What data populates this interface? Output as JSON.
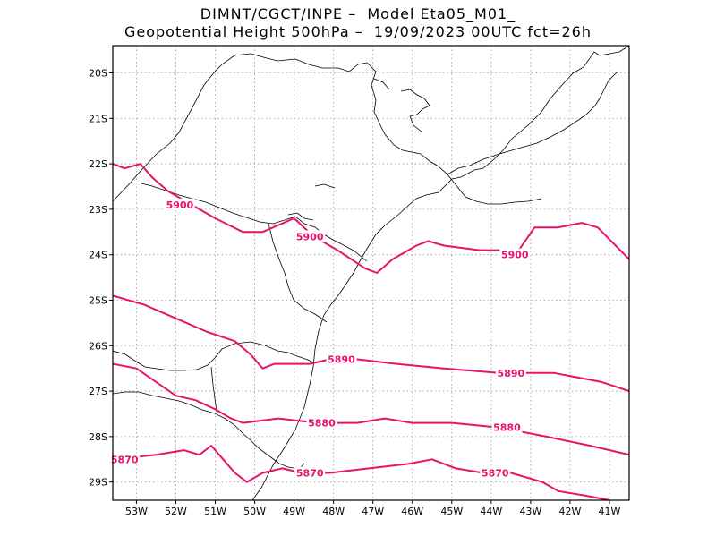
{
  "title_line1": "DIMNT/CGCT/INPE –  Model Eta05_M01_",
  "title_line2": "Geopotential Height 500hPa –  19/09/2023 00UTC fct=26h",
  "colors": {
    "contour": "#e8126c",
    "grid": "#999999",
    "border": "#000000"
  },
  "chart_data": {
    "type": "contour-map",
    "variable": "Geopotential Height 500hPa",
    "lon_range": [
      -53.6,
      -40.5
    ],
    "lat_range": [
      -29.4,
      -19.4
    ],
    "lon_ticks": [
      "53W",
      "52W",
      "51W",
      "50W",
      "49W",
      "48W",
      "47W",
      "46W",
      "45W",
      "44W",
      "43W",
      "42W",
      "41W"
    ],
    "lat_ticks": [
      "20S",
      "21S",
      "22S",
      "23S",
      "24S",
      "25S",
      "26S",
      "27S",
      "28S",
      "29S"
    ],
    "grid": true,
    "contours": [
      {
        "value": 5900,
        "label": "5900",
        "points": [
          [
            -53.6,
            -22.0
          ],
          [
            -53.3,
            -22.1
          ],
          [
            -52.9,
            -22.0
          ],
          [
            -52.6,
            -22.3
          ],
          [
            -52.2,
            -22.6
          ],
          [
            -51.4,
            -23.0
          ],
          [
            -51.0,
            -23.2
          ],
          [
            -50.3,
            -23.5
          ],
          [
            -49.8,
            -23.5
          ],
          [
            -49.0,
            -23.2
          ],
          [
            -48.5,
            -23.6
          ],
          [
            -47.9,
            -23.9
          ],
          [
            -47.2,
            -24.3
          ],
          [
            -46.9,
            -24.4
          ],
          [
            -46.5,
            -24.1
          ],
          [
            -45.9,
            -23.8
          ],
          [
            -45.6,
            -23.7
          ],
          [
            -45.2,
            -23.8
          ],
          [
            -44.3,
            -23.9
          ],
          [
            -43.3,
            -23.9
          ],
          [
            -42.9,
            -23.4
          ],
          [
            -42.3,
            -23.4
          ],
          [
            -41.7,
            -23.3
          ],
          [
            -41.3,
            -23.4
          ],
          [
            -40.5,
            -24.1
          ]
        ],
        "label_positions": [
          [
            -51.9,
            -22.9
          ],
          [
            -48.6,
            -23.6
          ],
          [
            -43.4,
            -24.0
          ]
        ]
      },
      {
        "value": 5890,
        "label": "5890",
        "points": [
          [
            -53.6,
            -24.9
          ],
          [
            -52.8,
            -25.1
          ],
          [
            -52.0,
            -25.4
          ],
          [
            -51.2,
            -25.7
          ],
          [
            -50.5,
            -25.9
          ],
          [
            -50.1,
            -26.2
          ],
          [
            -49.8,
            -26.5
          ],
          [
            -49.5,
            -26.4
          ],
          [
            -49.1,
            -26.4
          ],
          [
            -48.6,
            -26.4
          ],
          [
            -48.1,
            -26.3
          ],
          [
            -47.4,
            -26.3
          ],
          [
            -46.4,
            -26.4
          ],
          [
            -45.2,
            -26.5
          ],
          [
            -43.8,
            -26.6
          ],
          [
            -42.4,
            -26.6
          ],
          [
            -41.2,
            -26.8
          ],
          [
            -40.5,
            -27.0
          ]
        ],
        "label_positions": [
          [
            -47.8,
            -26.3
          ],
          [
            -43.5,
            -26.6
          ]
        ]
      },
      {
        "value": 5880,
        "label": "5880",
        "points": [
          [
            -53.6,
            -26.4
          ],
          [
            -53.0,
            -26.5
          ],
          [
            -52.5,
            -26.8
          ],
          [
            -52.0,
            -27.1
          ],
          [
            -51.5,
            -27.2
          ],
          [
            -51.0,
            -27.4
          ],
          [
            -50.6,
            -27.6
          ],
          [
            -50.3,
            -27.7
          ],
          [
            -49.4,
            -27.6
          ],
          [
            -48.4,
            -27.7
          ],
          [
            -47.4,
            -27.7
          ],
          [
            -46.7,
            -27.6
          ],
          [
            -46.0,
            -27.7
          ],
          [
            -45.0,
            -27.7
          ],
          [
            -43.8,
            -27.8
          ],
          [
            -42.6,
            -28.0
          ],
          [
            -41.5,
            -28.2
          ],
          [
            -40.5,
            -28.4
          ]
        ],
        "label_positions": [
          [
            -48.3,
            -27.7
          ],
          [
            -43.6,
            -27.8
          ]
        ]
      },
      {
        "value": 5870,
        "label": "5870",
        "points": [
          [
            -53.6,
            -28.5
          ],
          [
            -52.5,
            -28.4
          ],
          [
            -51.8,
            -28.3
          ],
          [
            -51.4,
            -28.4
          ],
          [
            -51.1,
            -28.2
          ],
          [
            -50.8,
            -28.5
          ],
          [
            -50.5,
            -28.8
          ],
          [
            -50.2,
            -29.0
          ],
          [
            -49.8,
            -28.8
          ],
          [
            -49.3,
            -28.7
          ],
          [
            -48.8,
            -28.8
          ],
          [
            -48.1,
            -28.8
          ],
          [
            -47.1,
            -28.7
          ],
          [
            -46.1,
            -28.6
          ],
          [
            -45.5,
            -28.5
          ],
          [
            -44.9,
            -28.7
          ],
          [
            -44.2,
            -28.8
          ],
          [
            -43.5,
            -28.8
          ],
          [
            -42.7,
            -29.0
          ],
          [
            -42.3,
            -29.2
          ],
          [
            -41.6,
            -29.3
          ],
          [
            -41.0,
            -29.4
          ]
        ],
        "label_positions": [
          [
            -53.3,
            -28.5
          ],
          [
            -48.6,
            -28.8
          ],
          [
            -43.9,
            -28.8
          ]
        ]
      }
    ]
  }
}
